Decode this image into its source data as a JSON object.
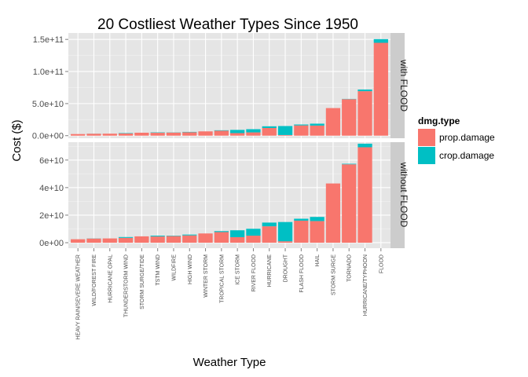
{
  "chart_data": {
    "type": "bar",
    "stacked": true,
    "faceted": true,
    "title": "20 Costliest Weather Types Since 1950",
    "xlabel": "Weather Type",
    "ylabel": "Cost ($)",
    "grid": true,
    "legend": {
      "title": "dmg.type",
      "placement": "right",
      "entries": [
        {
          "name": "prop.damage",
          "color": "#F8766D"
        },
        {
          "name": "crop.damage",
          "color": "#00BFC4"
        }
      ]
    },
    "categories": [
      "HEAVY RAIN/SEVERE WEATHER",
      "WILD/FOREST FIRE",
      "HURRICANE OPAL",
      "THUNDERSTORM WIND",
      "STORM SURGE/TIDE",
      "TSTM WIND",
      "WILDFIRE",
      "HIGH WIND",
      "WINTER STORM",
      "TROPICAL STORM",
      "ICE STORM",
      "RIVER FLOOD",
      "HURRICANE",
      "DROUGHT",
      "FLASH FLOOD",
      "HAIL",
      "STORM SURGE",
      "TORNADO",
      "HURRICANE/TYPHOON",
      "FLOOD"
    ],
    "series": [
      {
        "name": "prop.damage",
        "values": [
          2500000000.0,
          3000000000.0,
          3100000000.0,
          3500000000.0,
          4600000000.0,
          4500000000.0,
          4800000000.0,
          5300000000.0,
          6700000000.0,
          7700000000.0,
          4000000000.0,
          5100000000.0,
          11900000000.0,
          1000000000.0,
          16000000000.0,
          15700000000.0,
          43000000000.0,
          56900000000.0,
          69300000000.0,
          144700000000.0
        ]
      },
      {
        "name": "crop.damage",
        "values": [
          0.0,
          100000000.0,
          0.0,
          600000000.0,
          0.0,
          600000000.0,
          300000000.0,
          600000000.0,
          0.0,
          700000000.0,
          5000000000.0,
          5000000000.0,
          2700000000.0,
          14000000000.0,
          1400000000.0,
          3000000000.0,
          0.0,
          400000000.0,
          2600000000.0,
          5700000000.0
        ]
      }
    ],
    "panels": [
      {
        "label": "with FLOOD",
        "ylim": [
          -4000000000.0,
          160000000000.0
        ],
        "y_ticks": [
          0,
          50000000000.0,
          100000000000.0,
          150000000000.0
        ],
        "y_tick_labels": [
          "0.0e+00",
          "5.0e+10",
          "1.0e+11",
          "1.5e+11"
        ],
        "include_last_category": true
      },
      {
        "label": "without FLOOD",
        "ylim": [
          -4000000000.0,
          73000000000.0
        ],
        "y_ticks": [
          0,
          20000000000.0,
          40000000000.0,
          60000000000.0
        ],
        "y_tick_labels": [
          "0e+00",
          "2e+10",
          "4e+10",
          "6e+10"
        ],
        "include_last_category": false
      }
    ]
  }
}
